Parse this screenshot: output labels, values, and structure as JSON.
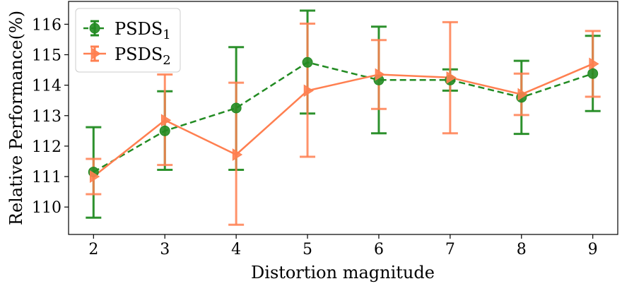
{
  "chart_data": {
    "type": "line",
    "title": "",
    "xlabel": "Distortion magnitude",
    "ylabel": "Relative Performance(%)",
    "x": [
      2,
      3,
      4,
      5,
      6,
      7,
      8,
      9
    ],
    "xlim": [
      1.65,
      9.35
    ],
    "ylim": [
      109.1,
      116.75
    ],
    "yticks": [
      110,
      111,
      112,
      113,
      114,
      115,
      116
    ],
    "grid": false,
    "legend_position": "top-left",
    "series": [
      {
        "name": "PSDS",
        "subscript": "1",
        "color": "#228b22",
        "line_style": "dashed",
        "marker": "circle",
        "values": [
          111.15,
          112.5,
          113.25,
          114.75,
          114.17,
          114.17,
          113.6,
          114.38
        ],
        "err_low": [
          109.65,
          111.22,
          111.22,
          113.07,
          112.42,
          113.82,
          112.4,
          113.15
        ],
        "err_high": [
          112.62,
          113.8,
          115.25,
          116.45,
          115.92,
          114.52,
          114.8,
          115.62
        ]
      },
      {
        "name": "PSDS",
        "subscript": "2",
        "color": "#ff7f50",
        "line_style": "solid",
        "marker": "triangle-right",
        "values": [
          111.0,
          112.85,
          111.72,
          113.82,
          114.35,
          114.25,
          113.7,
          114.7
        ],
        "err_low": [
          110.42,
          111.38,
          109.42,
          111.65,
          113.22,
          112.42,
          113.02,
          113.62
        ],
        "err_high": [
          111.58,
          114.35,
          114.08,
          116.02,
          115.48,
          116.07,
          114.38,
          115.78
        ]
      }
    ]
  }
}
